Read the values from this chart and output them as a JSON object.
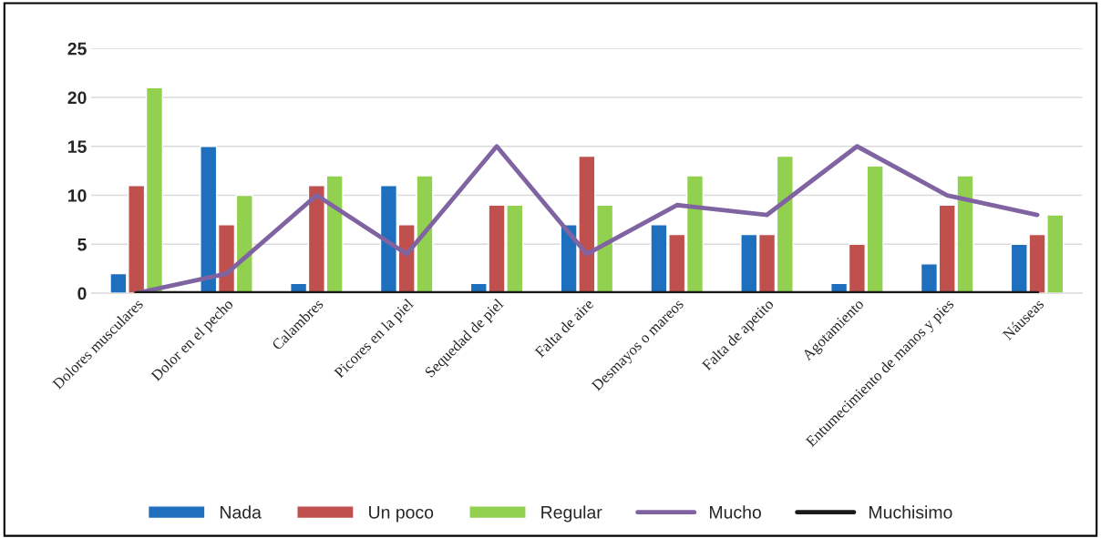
{
  "chart_data": {
    "type": "bar",
    "categories": [
      "Dolores musculares",
      "Dolor en el pecho",
      "Calambres",
      "Picores en la piel",
      "Sequedad de piel",
      "Falta de aire",
      "Desmayos o mareos",
      "Falta de apetito",
      "Agotamiento",
      "Entumecimiento de manos y pies",
      "Náuseas"
    ],
    "series": [
      {
        "name": "Nada",
        "color": "#1f6fbf",
        "values": [
          2,
          15,
          1,
          11,
          1,
          7,
          7,
          6,
          1,
          3,
          5
        ]
      },
      {
        "name": "Un poco",
        "color": "#c0504d",
        "values": [
          11,
          7,
          11,
          7,
          9,
          14,
          6,
          6,
          5,
          9,
          6
        ]
      },
      {
        "name": "Regular",
        "color": "#92d050",
        "values": [
          21,
          10,
          12,
          12,
          9,
          9,
          12,
          14,
          13,
          12,
          8
        ]
      },
      {
        "name": "Mucho",
        "type": "line",
        "color": "#8064a2",
        "values": [
          0,
          2,
          10,
          4,
          15,
          4,
          9,
          8,
          15,
          10,
          8
        ]
      },
      {
        "name": "Muchisimo",
        "type": "line",
        "color": "#1a1a1a",
        "values": [
          0,
          0,
          0,
          0,
          0,
          0,
          0,
          0,
          0,
          0,
          0
        ]
      }
    ],
    "ylim": [
      0,
      25
    ],
    "yticks": [
      0,
      5,
      10,
      15,
      20,
      25
    ],
    "grid": "y",
    "legend": "bottom"
  }
}
